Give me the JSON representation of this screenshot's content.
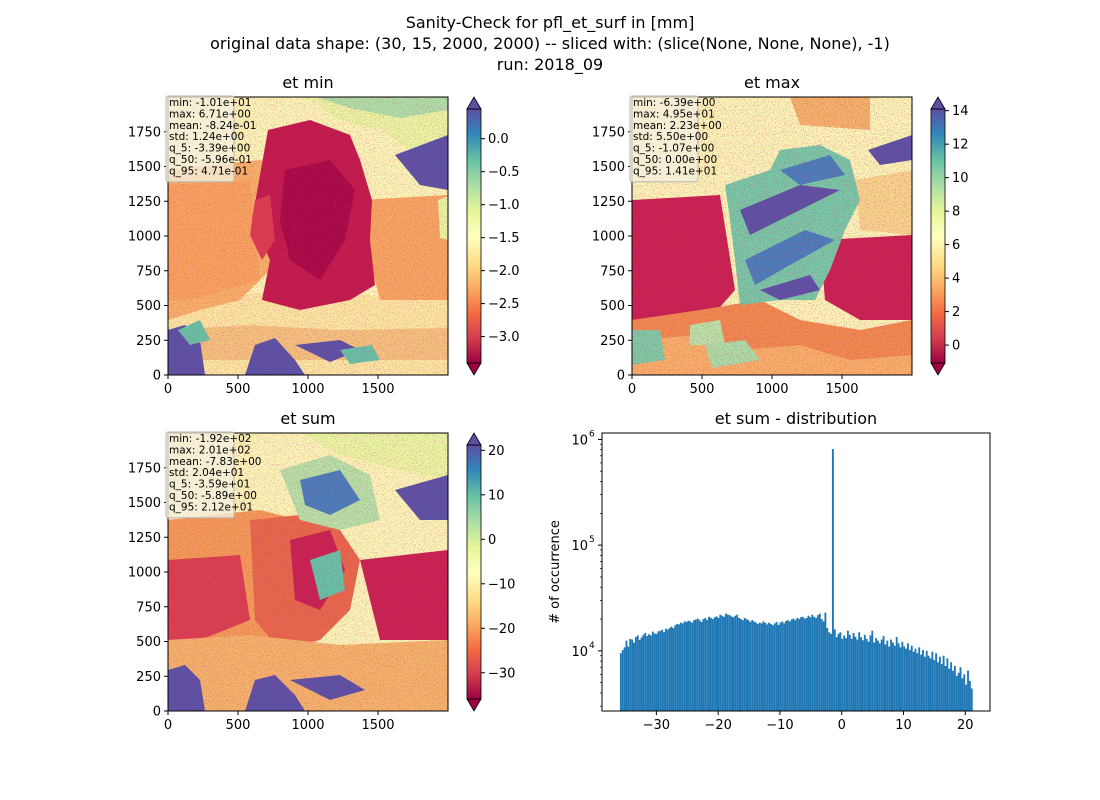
{
  "figure": {
    "title_lines": [
      "Sanity-Check for pfl_et_surf in [mm]",
      "original data shape: (30, 15, 2000, 2000) -- sliced with: (slice(None, None, None), -1)",
      "run: 2018_09"
    ]
  },
  "colormap": "Spectral",
  "colors": {
    "histogram": "#1f77b4",
    "map_ocean": "#5a52a3",
    "map_background": "#fbf8b0",
    "stats_box_bg": "#f5f0dc",
    "stats_box_border": "#b8b8b8"
  },
  "chart_data": [
    {
      "type": "heatmap",
      "title": "et min",
      "x_ticks": [
        "0",
        "500",
        "1000",
        "1500"
      ],
      "y_ticks": [
        "0",
        "250",
        "500",
        "750",
        "1000",
        "1250",
        "1500",
        "1750"
      ],
      "xlim": [
        0,
        2000
      ],
      "ylim": [
        0,
        2000
      ],
      "colorbar": {
        "range": [
          -3.4,
          0.45
        ],
        "ticks": [
          0.0,
          -0.5,
          -1.0,
          -1.5,
          -2.0,
          -2.5,
          -3.0
        ],
        "tick_labels": [
          "0.0",
          "−0.5",
          "−1.0",
          "−1.5",
          "−2.0",
          "−2.5",
          "−3.0"
        ],
        "extend": "both"
      },
      "stats": [
        "min: -1.01e+01",
        "max: 6.71e+00",
        "mean: -8.24e-01",
        "std: 1.24e+00",
        "q_5: -3.39e+00",
        "q_50: -5.96e-01",
        "q_95: 4.71e-01"
      ]
    },
    {
      "type": "heatmap",
      "title": "et max",
      "x_ticks": [
        "0",
        "500",
        "1000",
        "1500"
      ],
      "y_ticks": [
        "0",
        "250",
        "500",
        "750",
        "1000",
        "1250",
        "1500",
        "1750"
      ],
      "xlim": [
        0,
        2000
      ],
      "ylim": [
        0,
        2000
      ],
      "colorbar": {
        "range": [
          -1.07,
          14.1
        ],
        "ticks": [
          14,
          12,
          10,
          8,
          6,
          4,
          2,
          0
        ],
        "tick_labels": [
          "14",
          "12",
          "10",
          "8",
          "6",
          "4",
          "2",
          "0"
        ],
        "extend": "both"
      },
      "stats": [
        "min: -6.39e+00",
        "max: 4.95e+01",
        "mean: 2.23e+00",
        "std: 5.50e+00",
        "q_5: -1.07e+00",
        "q_50: 0.00e+00",
        "q_95: 1.41e+01"
      ]
    },
    {
      "type": "heatmap",
      "title": "et sum",
      "x_ticks": [
        "0",
        "500",
        "1000",
        "1500"
      ],
      "y_ticks": [
        "0",
        "250",
        "500",
        "750",
        "1000",
        "1250",
        "1500",
        "1750"
      ],
      "xlim": [
        0,
        2000
      ],
      "ylim": [
        0,
        2000
      ],
      "colorbar": {
        "range": [
          -35.9,
          21.2
        ],
        "ticks": [
          20,
          10,
          0,
          -10,
          -20,
          -30
        ],
        "tick_labels": [
          "20",
          "10",
          "0",
          "−10",
          "−20",
          "−30"
        ],
        "extend": "both"
      },
      "stats": [
        "min: -1.92e+02",
        "max: 2.01e+02",
        "mean: -7.83e+00",
        "std: 2.04e+01",
        "q_5: -3.59e+01",
        "q_50: -5.89e+00",
        "q_95: 2.12e+01"
      ]
    },
    {
      "type": "bar",
      "title": "et sum - distribution",
      "ylabel": "# of occurrence",
      "log_y": true,
      "xlim": [
        -38.8,
        24.0
      ],
      "ylim": [
        2700,
        1150000
      ],
      "x_ticks": [
        -30,
        -20,
        -10,
        0,
        10,
        20
      ],
      "x_tick_labels": [
        "−30",
        "−20",
        "−10",
        "0",
        "10",
        "20"
      ],
      "y_tick_labels": [
        "10",
        "10",
        "10"
      ],
      "y_tick_exponents": [
        "4",
        "5",
        "6"
      ],
      "y_ticks": [
        10000,
        100000,
        1000000
      ],
      "bin_range": [
        -35.9,
        21.2
      ],
      "bin_counts": [
        9500,
        10200,
        10800,
        12500,
        11000,
        13000,
        12800,
        12000,
        13500,
        14000,
        12700,
        13400,
        14200,
        14800,
        13800,
        14400,
        14000,
        15200,
        14600,
        14500,
        15300,
        15500,
        15800,
        15000,
        16200,
        15900,
        16500,
        17000,
        16400,
        17500,
        18000,
        17800,
        18500,
        18200,
        19000,
        18800,
        19300,
        19000,
        18500,
        19500,
        19800,
        20200,
        19500,
        18800,
        20000,
        20500,
        19600,
        21000,
        20500,
        20000,
        20800,
        21200,
        20500,
        22000,
        21500,
        21000,
        22500,
        22000,
        21800,
        21200,
        20800,
        21500,
        22000,
        20500,
        20000,
        19500,
        20500,
        20000,
        19500,
        18800,
        19500,
        19000,
        18500,
        18000,
        18500,
        18200,
        19000,
        18400,
        17800,
        18500,
        18000,
        17500,
        18200,
        18800,
        17600,
        18500,
        19000,
        18200,
        19200,
        19500,
        19000,
        19800,
        20200,
        19500,
        20500,
        20000,
        20800,
        21000,
        20200,
        20500,
        21500,
        20800,
        22000,
        21000,
        20500,
        21800,
        22500,
        20000,
        19000,
        23000,
        16500,
        15000,
        14500,
        810000,
        16000,
        13500,
        14500,
        15000,
        13000,
        14000,
        13200,
        15500,
        14200,
        13000,
        14800,
        13600,
        12800,
        15000,
        13500,
        12600,
        14200,
        13000,
        12200,
        14000,
        15500,
        12000,
        13200,
        12500,
        11800,
        12800,
        13800,
        11500,
        12500,
        11000,
        12800,
        12000,
        11200,
        13500,
        11800,
        10800,
        12200,
        11000,
        10500,
        11800,
        10200,
        11200,
        9800,
        10500,
        9500,
        10800,
        9200,
        10200,
        8800,
        10000,
        9000,
        8500,
        9800,
        8200,
        9500,
        7800,
        8800,
        7500,
        9000,
        7200,
        8500,
        6800,
        7800,
        6500,
        7200,
        5800,
        6200,
        7000,
        5500,
        6000,
        4800,
        6500,
        5200,
        4400
      ]
    }
  ]
}
